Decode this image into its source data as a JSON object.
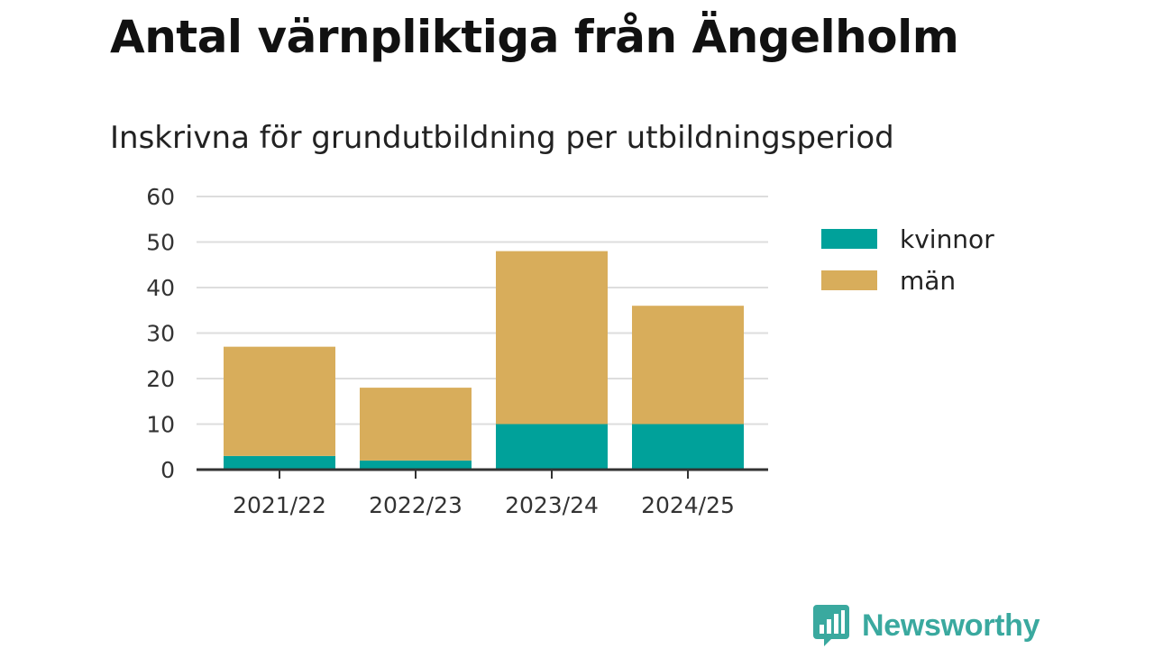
{
  "title": "Antal värnpliktiga från Ängelholm",
  "subtitle": "Inskrivna för grundutbildning per utbildningsperiod",
  "brand": {
    "name": "Newsworthy",
    "icon": "newsworthy-logo-icon"
  },
  "colors": {
    "kvinnor": "#00a19a",
    "man": "#d8ad5b",
    "grid": "#dddddd",
    "axis": "#333333",
    "brand": "#3aa99f"
  },
  "chart_data": {
    "type": "bar",
    "stacked": true,
    "categories": [
      "2021/22",
      "2022/23",
      "2023/24",
      "2024/25"
    ],
    "series": [
      {
        "name": "kvinnor",
        "values": [
          3,
          2,
          10,
          10
        ]
      },
      {
        "name": "män",
        "values": [
          24,
          16,
          38,
          26
        ]
      }
    ],
    "ylim": [
      0,
      60
    ],
    "yticks": [
      0,
      10,
      20,
      30,
      40,
      50,
      60
    ],
    "grid": true,
    "legend": "right"
  }
}
